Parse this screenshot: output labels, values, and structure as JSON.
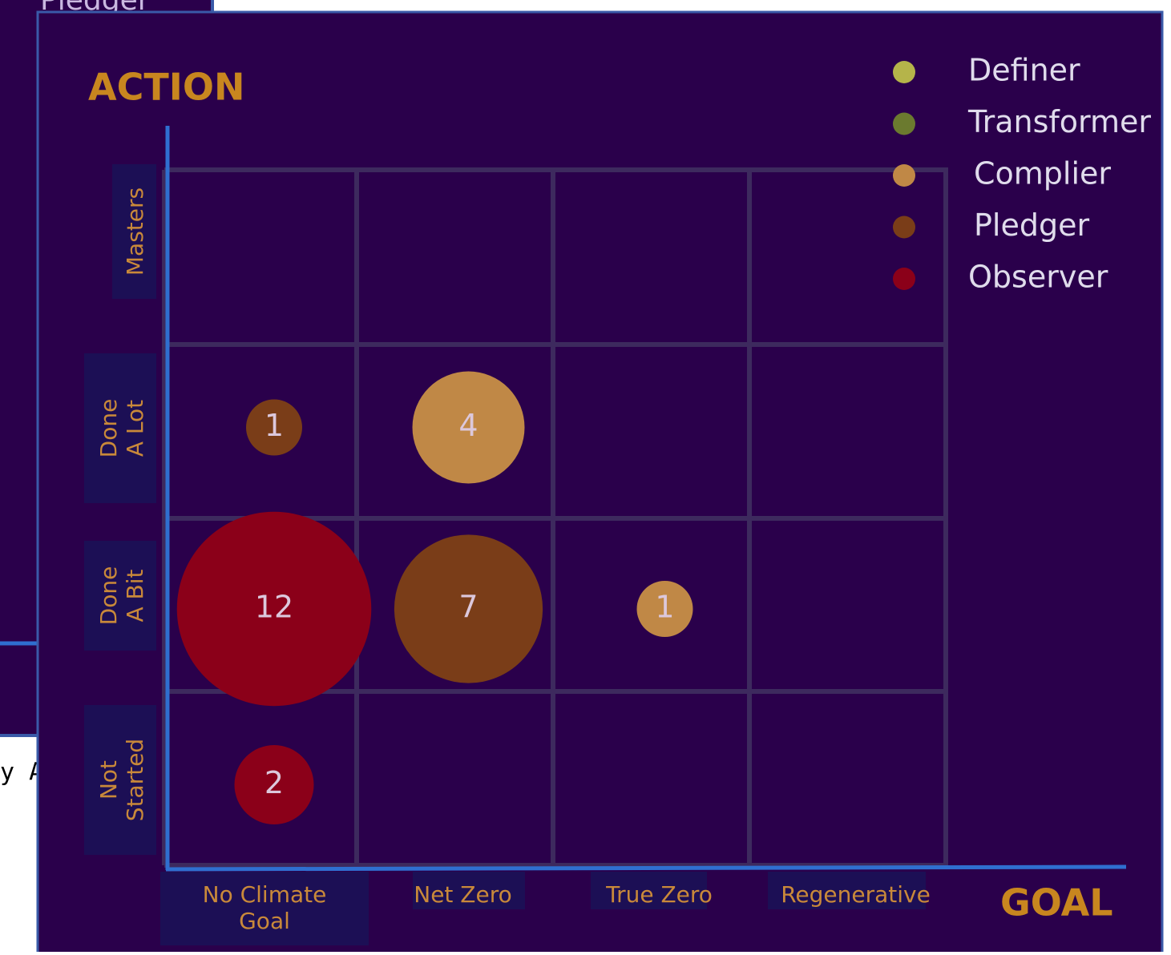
{
  "background_texts": [
    "Pledger",
    "y A"
  ],
  "chart_data": {
    "type": "bubble",
    "title": "ACTION",
    "x_label": "GOAL",
    "categories": [
      [
        "No Climate",
        "Goal"
      ],
      [
        "Net Zero"
      ],
      [
        "True Zero"
      ],
      [
        "Regenerative"
      ]
    ],
    "y_categories": [
      [
        "Not",
        "Started"
      ],
      [
        "Done",
        "A Bit"
      ],
      [
        "Done",
        "A Lot"
      ],
      [
        "Masters"
      ]
    ],
    "series": [
      {
        "name": "Definer",
        "color": "#b5b44a",
        "x": [],
        "y": [],
        "values": []
      },
      {
        "name": "Transformer",
        "color": "#6b7a2f",
        "x": [],
        "y": [],
        "values": []
      },
      {
        "name": "Complier",
        "color": "#c08846",
        "x": [
          "Net Zero",
          "True Zero"
        ],
        "y": [
          "Done A Lot",
          "Done A Bit"
        ],
        "values": [
          4,
          1
        ]
      },
      {
        "name": "Pledger",
        "color": "#7a3d18",
        "x": [
          "No Climate Goal",
          "Net Zero"
        ],
        "y": [
          "Done A Lot",
          "Done A Bit"
        ],
        "values": [
          1,
          7
        ]
      },
      {
        "name": "Observer",
        "color": "#8b0019",
        "x": [
          "No Climate Goal",
          "No Climate Goal"
        ],
        "y": [
          "Done A Bit",
          "Not Started"
        ],
        "values": [
          12,
          2
        ]
      }
    ],
    "legend": "top-right",
    "grid": true
  }
}
